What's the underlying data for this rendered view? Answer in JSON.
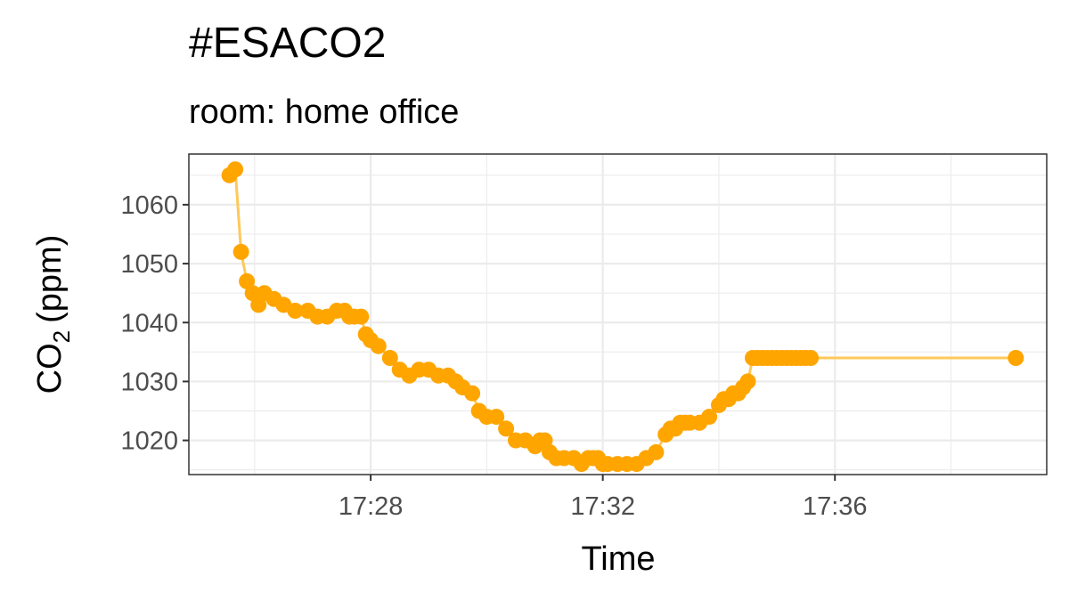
{
  "chart_data": {
    "type": "line",
    "title": "#ESACO2",
    "subtitle": "room: home office",
    "xlabel": "Time",
    "ylabel_main": "CO",
    "ylabel_sub": "2",
    "ylabel_unit": "(ppm)",
    "xlim": [
      "17:24:52",
      "17:39:39"
    ],
    "ylim": [
      1014.2,
      1068.6
    ],
    "x_ticks": [
      {
        "value": "17:28:00",
        "label": "17:28"
      },
      {
        "value": "17:32:00",
        "label": "17:32"
      },
      {
        "value": "17:36:00",
        "label": "17:36"
      }
    ],
    "y_ticks": [
      1020,
      1030,
      1040,
      1050,
      1060
    ],
    "grid": true,
    "colors": {
      "line": "#ffc85a",
      "point": "#ffa500",
      "grid": "#ebebeb",
      "panel_border": "#333333"
    },
    "series": [
      {
        "x": [
          "17:25:34",
          "17:25:40",
          "17:25:46",
          "17:25:52",
          "17:25:58",
          "17:26:04",
          "17:26:10",
          "17:26:20",
          "17:26:30",
          "17:26:42",
          "17:26:55",
          "17:27:05",
          "17:27:15",
          "17:27:25",
          "17:27:33",
          "17:27:38",
          "17:27:43",
          "17:27:50",
          "17:27:55",
          "17:28:00",
          "17:28:08",
          "17:28:20",
          "17:28:30",
          "17:28:40",
          "17:28:50",
          "17:29:00",
          "17:29:10",
          "17:29:20",
          "17:29:28",
          "17:29:35",
          "17:29:45",
          "17:29:52",
          "17:30:00",
          "17:30:10",
          "17:30:20",
          "17:30:30",
          "17:30:40",
          "17:30:50",
          "17:30:55",
          "17:31:00",
          "17:31:05",
          "17:31:12",
          "17:31:20",
          "17:31:30",
          "17:31:38",
          "17:31:45",
          "17:31:50",
          "17:31:55",
          "17:32:00",
          "17:32:05",
          "17:32:15",
          "17:32:25",
          "17:32:35",
          "17:32:45",
          "17:32:55",
          "17:33:05",
          "17:33:10",
          "17:33:15",
          "17:33:20",
          "17:33:25",
          "17:33:30",
          "17:33:40",
          "17:33:50",
          "17:34:00",
          "17:34:05",
          "17:34:10",
          "17:34:15",
          "17:34:20",
          "17:34:25",
          "17:34:30",
          "17:34:35",
          "17:34:40",
          "17:34:45",
          "17:34:50",
          "17:34:55",
          "17:35:00",
          "17:35:05",
          "17:35:10",
          "17:35:15",
          "17:35:20",
          "17:35:25",
          "17:35:30",
          "17:35:35",
          "17:39:07"
        ],
        "values": [
          1065,
          1066,
          1052,
          1047,
          1045,
          1043,
          1045,
          1044,
          1043,
          1042,
          1042,
          1041,
          1041,
          1042,
          1042,
          1041,
          1041,
          1041,
          1038,
          1037,
          1036,
          1034,
          1032,
          1031,
          1032,
          1032,
          1031,
          1031,
          1030,
          1029,
          1028,
          1025,
          1024,
          1024,
          1022,
          1020,
          1020,
          1019,
          1020,
          1020,
          1018,
          1017,
          1017,
          1017,
          1016,
          1017,
          1017,
          1017,
          1016,
          1016,
          1016,
          1016,
          1016,
          1017,
          1018,
          1021,
          1022,
          1022,
          1023,
          1023,
          1023,
          1023,
          1024,
          1026,
          1027,
          1027,
          1028,
          1028,
          1029,
          1030,
          1034,
          1034,
          1034,
          1034,
          1034,
          1034,
          1034,
          1034,
          1034,
          1034,
          1034,
          1034,
          1034,
          1034
        ]
      }
    ]
  }
}
